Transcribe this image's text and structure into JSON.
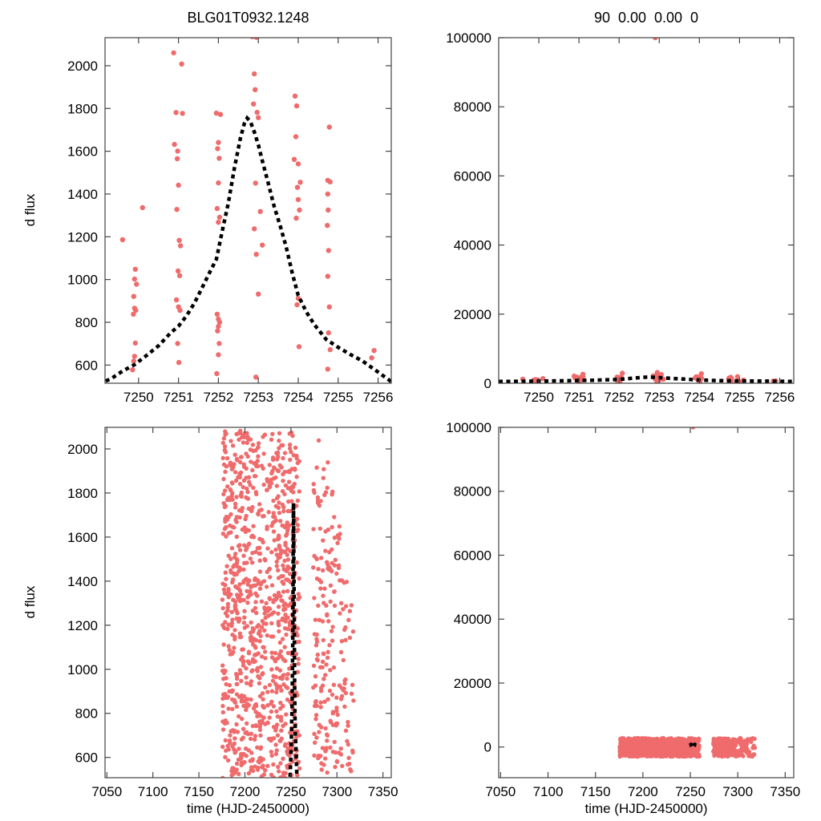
{
  "figure": {
    "background": "#ffffff",
    "point_color": "#ef6b6c",
    "model_color": "#000000",
    "frame_color": "#444444",
    "text_color": "#000000"
  },
  "chart_data": {
    "type": "scatter",
    "description": "Microlensing light curve BLG01T0932.1248: data (salmon points) with dashed Paczynski model, shown at two time zooms (columns of panels) and two flux zooms (rows).",
    "model_curve": [
      [
        7249.0,
        512
      ],
      [
        7249.3,
        535
      ],
      [
        7249.6,
        572
      ],
      [
        7249.9,
        602
      ],
      [
        7250.2,
        645
      ],
      [
        7250.5,
        690
      ],
      [
        7250.8,
        750
      ],
      [
        7251.0,
        782
      ],
      [
        7251.2,
        830
      ],
      [
        7251.4,
        890
      ],
      [
        7251.6,
        965
      ],
      [
        7251.8,
        1040
      ],
      [
        7251.95,
        1095
      ],
      [
        7252.1,
        1230
      ],
      [
        7252.25,
        1360
      ],
      [
        7252.4,
        1520
      ],
      [
        7252.55,
        1660
      ],
      [
        7252.65,
        1730
      ],
      [
        7252.72,
        1755
      ],
      [
        7252.8,
        1740
      ],
      [
        7252.9,
        1690
      ],
      [
        7253.0,
        1630
      ],
      [
        7253.1,
        1555
      ],
      [
        7253.25,
        1450
      ],
      [
        7253.4,
        1340
      ],
      [
        7253.55,
        1250
      ],
      [
        7253.7,
        1150
      ],
      [
        7253.85,
        1030
      ],
      [
        7254.0,
        925
      ],
      [
        7254.2,
        850
      ],
      [
        7254.4,
        790
      ],
      [
        7254.7,
        720
      ],
      [
        7255.0,
        683
      ],
      [
        7255.3,
        650
      ],
      [
        7255.6,
        620
      ],
      [
        7256.0,
        567
      ],
      [
        7256.35,
        520
      ]
    ],
    "panels": [
      {
        "id": "top-left",
        "title": "BLG01T0932.1248",
        "ylabel": "d flux",
        "xlim": [
          7249.16,
          7256.33
        ],
        "ylim": [
          515,
          2131
        ],
        "xticks": [
          7250,
          7251,
          7252,
          7253,
          7254,
          7255,
          7256
        ],
        "yticks": [
          600,
          800,
          1000,
          1200,
          1400,
          1600,
          1800,
          2000
        ],
        "marker_radius": 3.2,
        "show_model": true,
        "points": [
          [
            7249.6,
            1186
          ],
          [
            7249.85,
            578
          ],
          [
            7249.88,
            618
          ],
          [
            7249.9,
            641
          ],
          [
            7249.92,
            703
          ],
          [
            7249.87,
            838
          ],
          [
            7249.93,
            856
          ],
          [
            7249.9,
            866
          ],
          [
            7249.88,
            921
          ],
          [
            7249.95,
            978
          ],
          [
            7249.9,
            1002
          ],
          [
            7249.92,
            1048
          ],
          [
            7250.1,
            1336
          ],
          [
            7250.88,
            2060
          ],
          [
            7251.08,
            2008
          ],
          [
            7250.94,
            1781
          ],
          [
            7251.1,
            1777
          ],
          [
            7250.9,
            1632
          ],
          [
            7250.98,
            1601
          ],
          [
            7250.97,
            1565
          ],
          [
            7251.0,
            1441
          ],
          [
            7250.96,
            1328
          ],
          [
            7251.02,
            1183
          ],
          [
            7251.05,
            1158
          ],
          [
            7250.99,
            1040
          ],
          [
            7251.03,
            1018
          ],
          [
            7250.95,
            905
          ],
          [
            7251.0,
            872
          ],
          [
            7251.04,
            856
          ],
          [
            7250.98,
            701
          ],
          [
            7251.01,
            612
          ],
          [
            7251.95,
            1778
          ],
          [
            7252.05,
            1772
          ],
          [
            7252.0,
            1641
          ],
          [
            7251.98,
            1612
          ],
          [
            7252.02,
            1567
          ],
          [
            7252.0,
            1452
          ],
          [
            7251.97,
            1332
          ],
          [
            7252.03,
            1291
          ],
          [
            7252.0,
            1268
          ],
          [
            7251.97,
            838
          ],
          [
            7252.0,
            815
          ],
          [
            7252.03,
            800
          ],
          [
            7252.0,
            781
          ],
          [
            7251.98,
            760
          ],
          [
            7252.02,
            701
          ],
          [
            7252.0,
            648
          ],
          [
            7251.96,
            560
          ],
          [
            7252.85,
            2136
          ],
          [
            7252.95,
            2133
          ],
          [
            7252.9,
            1962
          ],
          [
            7252.92,
            1888
          ],
          [
            7252.88,
            1821
          ],
          [
            7252.97,
            1782
          ],
          [
            7253.0,
            1757
          ],
          [
            7252.93,
            1451
          ],
          [
            7253.05,
            1318
          ],
          [
            7252.9,
            1237
          ],
          [
            7253.1,
            1161
          ],
          [
            7252.95,
            1118
          ],
          [
            7253.0,
            932
          ],
          [
            7252.94,
            544
          ],
          [
            7253.92,
            1858
          ],
          [
            7253.96,
            1812
          ],
          [
            7253.94,
            1668
          ],
          [
            7253.9,
            1562
          ],
          [
            7254.0,
            1541
          ],
          [
            7254.05,
            1455
          ],
          [
            7253.98,
            1431
          ],
          [
            7254.0,
            1374
          ],
          [
            7254.03,
            1325
          ],
          [
            7253.95,
            1287
          ],
          [
            7254.0,
            912
          ],
          [
            7253.97,
            882
          ],
          [
            7254.02,
            686
          ],
          [
            7254.78,
            1713
          ],
          [
            7254.74,
            1464
          ],
          [
            7254.8,
            1457
          ],
          [
            7254.74,
            1400
          ],
          [
            7254.75,
            1325
          ],
          [
            7254.73,
            1253
          ],
          [
            7254.76,
            1136
          ],
          [
            7254.74,
            1015
          ],
          [
            7254.78,
            872
          ],
          [
            7254.76,
            751
          ],
          [
            7254.8,
            672
          ],
          [
            7254.74,
            581
          ],
          [
            7255.84,
            634
          ],
          [
            7255.9,
            668
          ]
        ]
      },
      {
        "id": "top-right",
        "title": "90  0.00  0.00  0",
        "xlim": [
          7249.0,
          7256.35
        ],
        "ylim": [
          0,
          100000
        ],
        "xticks": [
          7250,
          7251,
          7252,
          7253,
          7254,
          7255,
          7256
        ],
        "yticks": [
          0,
          20000,
          40000,
          60000,
          80000,
          100000
        ],
        "marker_radius": 3.2,
        "show_model": true,
        "reuse_points": "top-left",
        "points": [
          [
            7252.9,
            100000
          ],
          [
            7249.9,
            -300
          ],
          [
            7249.95,
            350
          ],
          [
            7251.05,
            -500
          ],
          [
            7251.1,
            2600
          ],
          [
            7252.0,
            -400
          ],
          [
            7252.08,
            2900
          ],
          [
            7252.95,
            3100
          ],
          [
            7253.05,
            2500
          ],
          [
            7253.98,
            -600
          ],
          [
            7254.05,
            2750
          ],
          [
            7254.95,
            1900
          ],
          [
            7254.9,
            -350
          ],
          [
            7255.0,
            450
          ],
          [
            7255.1,
            900
          ]
        ]
      },
      {
        "id": "bottom-left",
        "ylabel": "d flux",
        "xlabel": "time (HJD-2450000)",
        "xlim": [
          7048,
          7359
        ],
        "ylim": [
          508,
          2098
        ],
        "xticks": [
          7050,
          7100,
          7150,
          7200,
          7250,
          7300,
          7350
        ],
        "yticks": [
          600,
          800,
          1000,
          1200,
          1400,
          1600,
          1800,
          2000
        ],
        "marker_radius": 2.7,
        "show_model": true,
        "clusters": [
          [
            7176.5,
            28,
            500,
            2090
          ],
          [
            7179,
            36,
            500,
            2095
          ],
          [
            7181.5,
            30,
            505,
            2090
          ],
          [
            7184,
            22,
            520,
            2060
          ],
          [
            7186.5,
            34,
            500,
            2095
          ],
          [
            7189,
            38,
            500,
            2090
          ],
          [
            7191.5,
            32,
            505,
            2095
          ],
          [
            7194,
            36,
            500,
            2090
          ],
          [
            7196.5,
            30,
            505,
            2095
          ],
          [
            7199,
            34,
            500,
            2090
          ],
          [
            7201.5,
            30,
            500,
            2095
          ],
          [
            7204,
            26,
            510,
            2080
          ],
          [
            7206.5,
            30,
            500,
            2090
          ],
          [
            7209,
            28,
            505,
            2095
          ],
          [
            7211.5,
            32,
            500,
            2090
          ],
          [
            7214,
            26,
            510,
            2080
          ],
          [
            7216.5,
            30,
            500,
            2095
          ],
          [
            7219,
            26,
            505,
            2090
          ],
          [
            7221.5,
            22,
            510,
            2070
          ],
          [
            7224,
            18,
            530,
            2000
          ],
          [
            7226.5,
            16,
            540,
            1980
          ],
          [
            7229,
            24,
            510,
            2085
          ],
          [
            7231.5,
            26,
            505,
            2090
          ],
          [
            7234,
            30,
            500,
            2090
          ],
          [
            7236.5,
            34,
            500,
            2095
          ],
          [
            7239,
            30,
            505,
            2090
          ],
          [
            7241.5,
            34,
            500,
            2095
          ],
          [
            7244,
            30,
            500,
            2090
          ],
          [
            7246.5,
            32,
            505,
            2095
          ],
          [
            7249,
            34,
            500,
            2090
          ],
          [
            7251.5,
            36,
            500,
            2095
          ],
          [
            7254,
            30,
            505,
            2090
          ],
          [
            7256.5,
            24,
            510,
            2080
          ],
          [
            7258.5,
            14,
            540,
            1990
          ],
          [
            7275,
            14,
            540,
            1900
          ],
          [
            7277.5,
            18,
            520,
            2000
          ],
          [
            7280,
            16,
            530,
            2060
          ],
          [
            7282.5,
            14,
            540,
            1800
          ],
          [
            7285,
            16,
            520,
            1950
          ],
          [
            7287.5,
            14,
            530,
            1850
          ],
          [
            7290,
            16,
            520,
            2000
          ],
          [
            7292.5,
            12,
            540,
            1750
          ],
          [
            7295,
            14,
            530,
            1900
          ],
          [
            7297.5,
            12,
            540,
            1800
          ],
          [
            7300,
            12,
            530,
            1700
          ],
          [
            7302.5,
            10,
            540,
            1650
          ],
          [
            7305,
            10,
            530,
            1600
          ],
          [
            7307.5,
            9,
            540,
            1550
          ],
          [
            7310,
            8,
            530,
            1450
          ],
          [
            7312.5,
            7,
            540,
            1350
          ],
          [
            7315,
            6,
            530,
            1300
          ],
          [
            7317.5,
            5,
            550,
            1200
          ]
        ]
      },
      {
        "id": "bottom-right",
        "xlabel": "time (HJD-2450000)",
        "xlim": [
          7048,
          7359
        ],
        "ylim": [
          -9600,
          100000
        ],
        "xticks": [
          7050,
          7100,
          7150,
          7200,
          7250,
          7300,
          7350
        ],
        "yticks": [
          0,
          20000,
          40000,
          60000,
          80000,
          100000
        ],
        "marker_radius": 2.7,
        "show_model": true,
        "reuse_clusters": "bottom-left",
        "cluster_frange": [
          -3000,
          2800
        ],
        "points": [
          [
            7252.9,
            100000
          ]
        ]
      }
    ]
  },
  "random_seed": 20
}
